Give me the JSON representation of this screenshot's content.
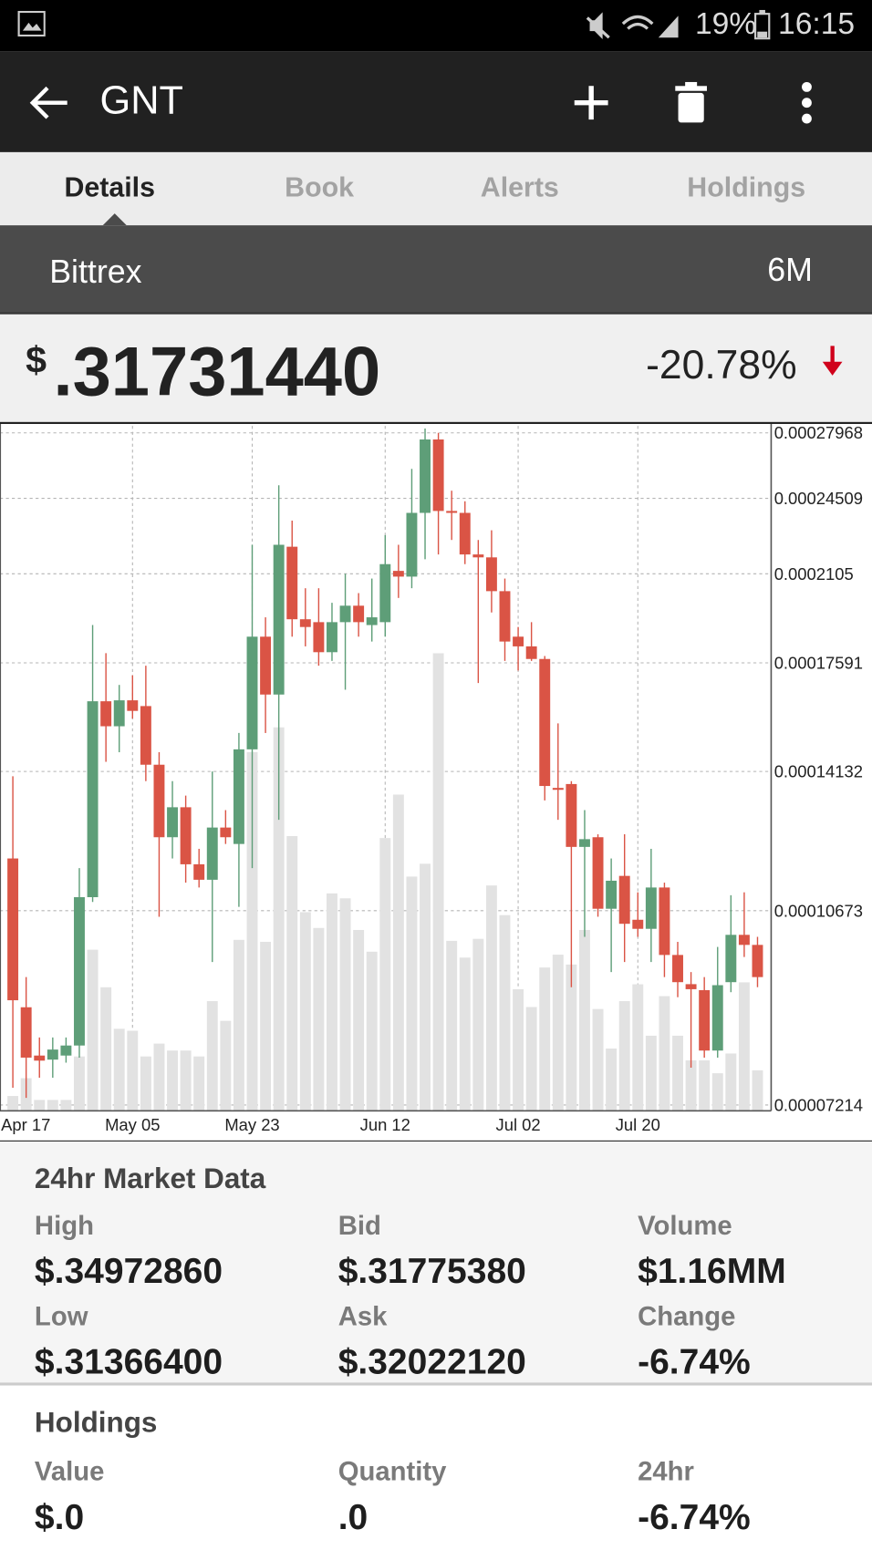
{
  "status_bar": {
    "battery": "19%",
    "time": "16:15"
  },
  "app_bar": {
    "title": "GNT"
  },
  "tabs": [
    "Details",
    "Book",
    "Alerts",
    "Holdings"
  ],
  "exchange": "Bittrex",
  "range": "6M",
  "price": {
    "currency": "$",
    "value": ".31731440",
    "change": "-20.78%"
  },
  "chart_data": {
    "type": "candlestick",
    "categories": [
      "Apr 17",
      null,
      null,
      null,
      null,
      null,
      null,
      null,
      null,
      "May 05",
      null,
      null,
      null,
      null,
      null,
      null,
      null,
      null,
      "May 23",
      null,
      null,
      null,
      null,
      null,
      null,
      null,
      null,
      null,
      "Jun 12",
      null,
      null,
      null,
      null,
      null,
      null,
      null,
      null,
      null,
      "Jul 02",
      null,
      null,
      null,
      null,
      null,
      null,
      null,
      null,
      "Jul 20",
      null,
      null,
      null,
      null,
      null,
      null,
      null,
      null,
      null
    ],
    "open": [
      0.00011858,
      8.785e-05,
      7.97e-05,
      7.905e-05,
      7.97e-05,
      8.133e-05,
      0.00010968,
      0.0001628,
      0.0001548,
      0.00016311,
      0.00016123,
      0.00014325,
      0.00012377,
      0.00013148,
      0.0001172,
      0.0001136,
      0.00012621,
      0.0001221,
      0.00014776,
      0.00018544,
      0.00016502,
      0.00022231,
      0.00019207,
      0.00019095,
      0.00017973,
      0.00019095,
      0.00019739,
      0.00018983,
      0.00019095,
      0.00021174,
      0.00020931,
      0.00023801,
      0.00027597,
      0.00023893,
      0.00023801,
      0.00021887,
      0.00021759,
      0.00020326,
      0.00018544,
      0.00018185,
      0.00017729,
      0.00013671,
      0.00013778,
      0.00012138,
      0.00012377,
      0.00010715,
      0.00011449,
      0.0001048,
      0.0001029,
      0.00011184,
      9.762e-05,
      9.204e-05,
      9.093e-05,
      8.051e-05,
      9.241e-05,
      0.00010166,
      9.962e-05
    ],
    "high": [
      0.00013995,
      9.336e-05,
      8.266e-05,
      8.266e-05,
      8.266e-05,
      0.00011629,
      0.00018983,
      0.00017938,
      0.00016825,
      0.00017154,
      0.0001749,
      0.0001469,
      0.00013859,
      0.0001346,
      0.00012091,
      0.00014132,
      0.00013072,
      0.00015271,
      0.00022318,
      0.00019282,
      0.00025164,
      0.00023432,
      0.00020446,
      0.00020446,
      0.00019855,
      0.0002105,
      0.00020247,
      0.00020849,
      0.00022757,
      0.00022318,
      0.00026008,
      0.00028211,
      0.00027964,
      0.00024889,
      0.00024364,
      0.00022536,
      0.0002298,
      0.00020849,
      0.00018909,
      0.00019095,
      0.00017833,
      0.0001557,
      0.00013859,
      0.00013072,
      0.0001245,
      0.00011858,
      0.0001245,
      0.00011076,
      0.00012091,
      0.00011294,
      0.00010023,
      9.431e-05,
      9.336e-05,
      9.921e-05,
      0.00011011,
      0.00011076,
      0.00010125
    ],
    "low": [
      7.469e-05,
      7.319e-05,
      7.622e-05,
      7.622e-05,
      7.857e-05,
      7.937e-05,
      0.00010862,
      0.00014409,
      0.0001469,
      0.00015722,
      0.00013859,
      0.00010544,
      0.00011858,
      0.00011294,
      0.00011184,
      9.624e-05,
      0.0001221,
      0.00010757,
      0.00011629,
      0.00015271,
      0.00012819,
      0.00018544,
      0.00018185,
      0.0001749,
      0.0001766,
      0.00016663,
      0.00018544,
      0.00018363,
      0.00018544,
      0.0002005,
      0.00020446,
      0.00021675,
      0.00021887,
      0.00022536,
      0.00021464,
      0.0001689,
      0.00019471,
      0.0001766,
      0.00017321,
      0.0001766,
      0.00013329,
      0.00012819,
      9.148e-05,
      0.00010125,
      0.00010544,
      9.431e-05,
      9.624e-05,
      0.00010125,
      9.624e-05,
      9.336e-05,
      8.965e-05,
      7.778e-05,
      7.937e-05,
      7.937e-05,
      9.056e-05,
      9.722e-05,
      9.148e-05
    ],
    "close": [
      8.91e-05,
      7.937e-05,
      7.889e-05,
      8.067e-05,
      8.133e-05,
      0.00010968,
      0.0001628,
      0.0001548,
      0.00016311,
      0.00015967,
      0.00014325,
      0.00012377,
      0.00013148,
      0.0001172,
      0.0001136,
      0.00012621,
      0.00012377,
      0.00014776,
      0.00018544,
      0.00016502,
      0.00022318,
      0.00019207,
      0.00018909,
      0.00017973,
      0.00019095,
      0.00019739,
      0.00019095,
      0.00019282,
      0.00021464,
      0.00020931,
      0.00023801,
      0.00027597,
      0.00023893,
      0.00023801,
      0.00021887,
      0.00021759,
      0.00020326,
      0.00018363,
      0.00018185,
      0.00017729,
      0.00013724,
      0.00013618,
      0.00012138,
      0.00012329,
      0.00010715,
      0.00011338,
      0.00010395,
      0.0001029,
      0.00011184,
      9.762e-05,
      9.241e-05,
      9.111e-05,
      8.051e-05,
      9.185e-05,
      0.00010166,
      9.962e-05,
      9.336e-05
    ],
    "volume": [
      15,
      33,
      11,
      11,
      11,
      55,
      163,
      125,
      83,
      81,
      55,
      68,
      61,
      61,
      55,
      111,
      91,
      173,
      363,
      171,
      388,
      278,
      201,
      185,
      220,
      215,
      183,
      161,
      276,
      320,
      237,
      250,
      463,
      172,
      155,
      174,
      228,
      198,
      123,
      105,
      145,
      158,
      148,
      183,
      103,
      63,
      111,
      128,
      76,
      116,
      76,
      51,
      51,
      38,
      58,
      130,
      41
    ],
    "ylim": [
      7.13e-05,
      0.0002836
    ],
    "yticks": [
      7.214e-05,
      0.00010673,
      0.00014132,
      0.00017591,
      0.0002105,
      0.00024509,
      0.00027968
    ],
    "log_scale": true,
    "grid": true,
    "up_color": "#5e9e78",
    "down_color": "#da5445",
    "volume_color": "#e2e2e2"
  },
  "market_data": {
    "title": "24hr Market Data",
    "items": [
      {
        "label": "High",
        "value": "$.34972860"
      },
      {
        "label": "Bid",
        "value": "$.31775380"
      },
      {
        "label": "Volume",
        "value": "$1.16MM"
      },
      {
        "label": "Low",
        "value": "$.31366400"
      },
      {
        "label": "Ask",
        "value": "$.32022120"
      },
      {
        "label": "Change",
        "value": "-6.74%"
      }
    ]
  },
  "holdings": {
    "title": "Holdings",
    "items": [
      {
        "label": "Value",
        "value": "$.0"
      },
      {
        "label": "Quantity",
        "value": ".0"
      },
      {
        "label": "24hr",
        "value": "-6.74%"
      }
    ]
  }
}
